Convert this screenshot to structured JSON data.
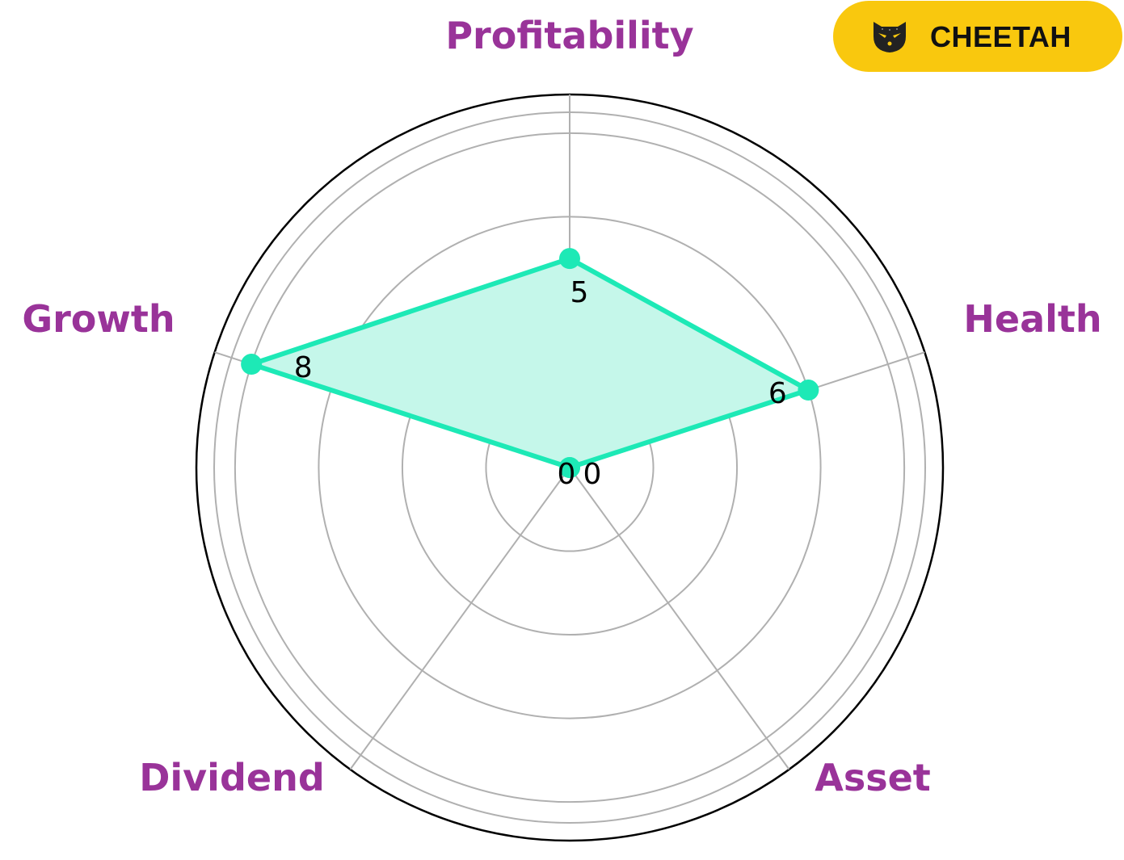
{
  "chart_data": {
    "type": "radar",
    "axes": [
      "Profitability",
      "Health",
      "Asset",
      "Dividend",
      "Growth"
    ],
    "values": [
      5,
      6,
      0,
      0,
      8
    ],
    "value_labels": [
      "5",
      "6",
      "0",
      "0",
      "8"
    ],
    "rmax": 8.5,
    "rings": [
      2,
      4,
      6,
      8
    ],
    "grid": true,
    "colors": {
      "series": "#1de9b6",
      "fill": "#c5f7ea",
      "axis_label": "#993399",
      "grid": "#b0b0b0",
      "frame": "#000000"
    }
  },
  "badge": {
    "label": "CHEETAH",
    "icon": "cheetah-icon",
    "background": "#f9c80e"
  }
}
